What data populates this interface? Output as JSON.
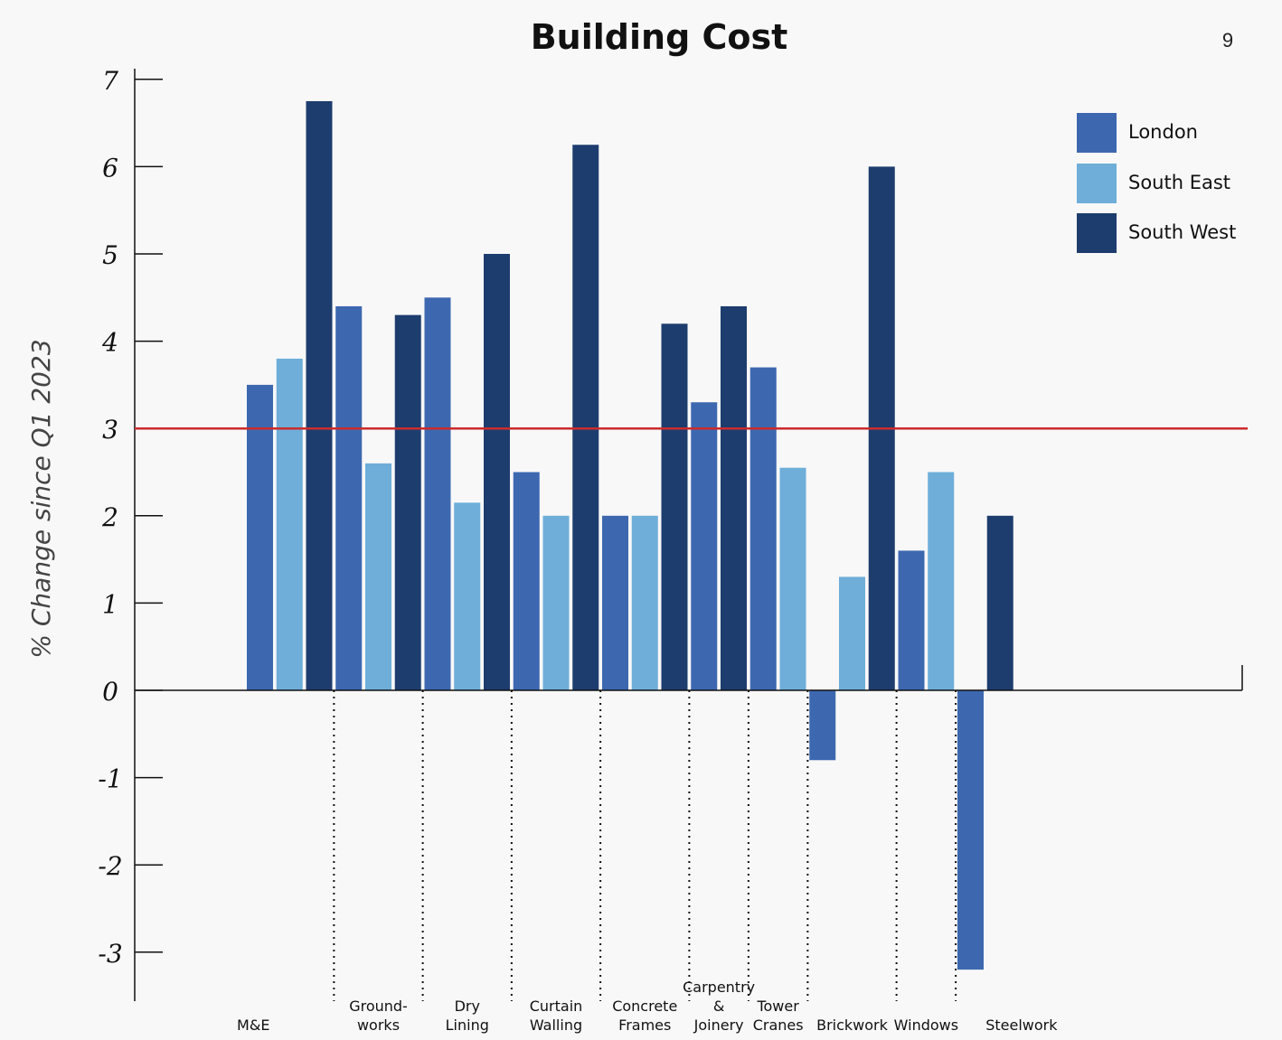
{
  "page_number": "9",
  "colors": {
    "london": "#3d68b0",
    "south_east": "#6eaed9",
    "south_west": "#1d3d6e",
    "reference_line": "#cc2b2b",
    "axis": "#111111"
  },
  "chart_data": {
    "type": "bar",
    "title": "Building Cost",
    "ylabel": "% Change since Q1 2023",
    "xlabel": "",
    "ylim": [
      -3.5,
      7.2
    ],
    "yticks": [
      7,
      6,
      5,
      4,
      3,
      2,
      1,
      0,
      -1,
      -2,
      -3
    ],
    "ytick_labels": [
      "7",
      "6",
      "5",
      "4",
      "3",
      "2",
      "1",
      "0",
      "-1",
      "-2",
      "-3"
    ],
    "reference_line": 3,
    "categories": [
      "M&E",
      "Ground-\nworks",
      "Dry\nLining",
      "Curtain\nWalling",
      "Concrete\nFrames",
      "Carpentry\n&\nJoinery",
      "Tower\nCranes",
      "Brickwork",
      "Windows",
      "Steelwork"
    ],
    "series": [
      {
        "name": "London",
        "color": "#3d68b0",
        "values": [
          3.5,
          4.4,
          4.5,
          2.5,
          2.0,
          3.3,
          3.7,
          -0.8,
          1.6,
          -3.2
        ]
      },
      {
        "name": "South East",
        "color": "#6eaed9",
        "values": [
          3.8,
          2.6,
          2.15,
          2.0,
          2.0,
          null,
          2.55,
          1.3,
          2.5,
          null
        ]
      },
      {
        "name": "South West",
        "color": "#1d3d6e",
        "values": [
          6.75,
          4.3,
          5.0,
          6.25,
          4.2,
          4.4,
          null,
          6.0,
          null,
          2.0
        ]
      }
    ],
    "legend_position": "top-right",
    "grid": false
  }
}
